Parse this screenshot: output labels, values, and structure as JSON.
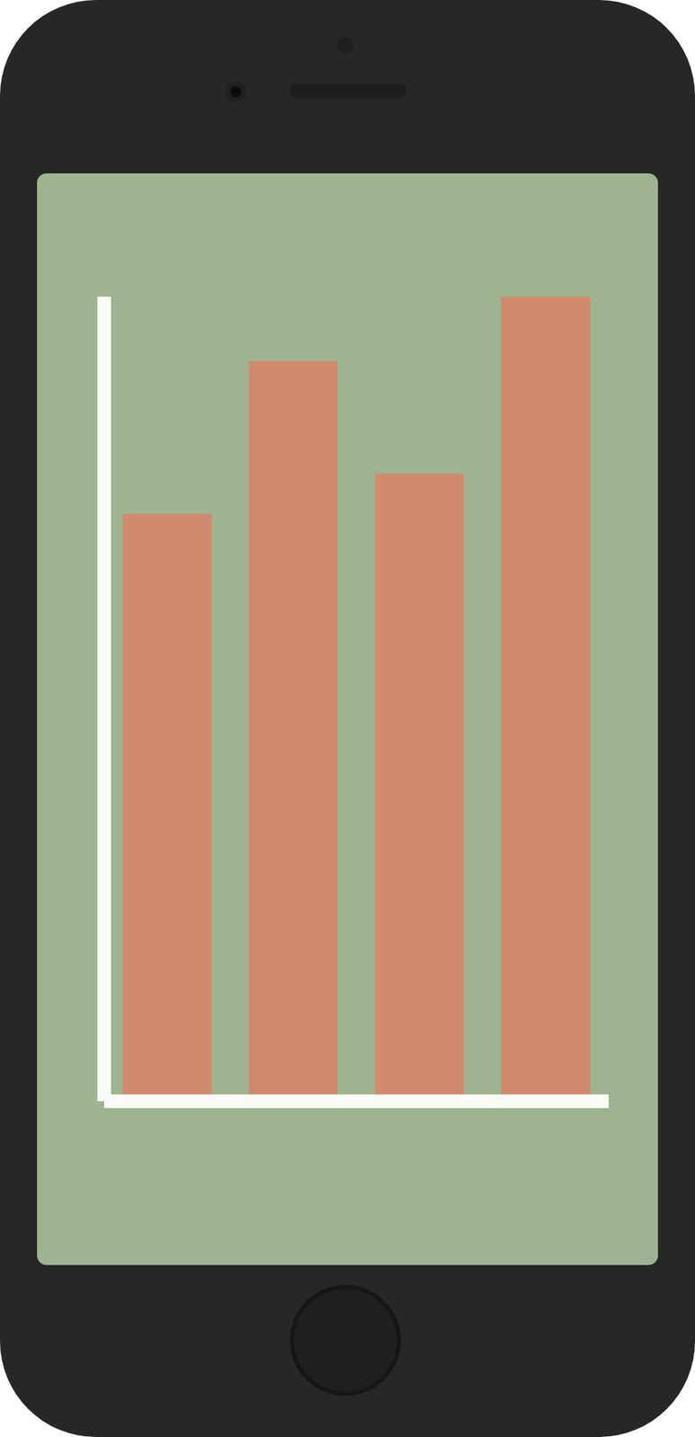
{
  "chart_data": {
    "type": "bar",
    "categories": [
      null,
      null,
      null,
      null
    ],
    "values": [
      73,
      92,
      78,
      100
    ],
    "color": "#d08b6c",
    "ylim": [
      0,
      100
    ],
    "tick_labels": false
  }
}
